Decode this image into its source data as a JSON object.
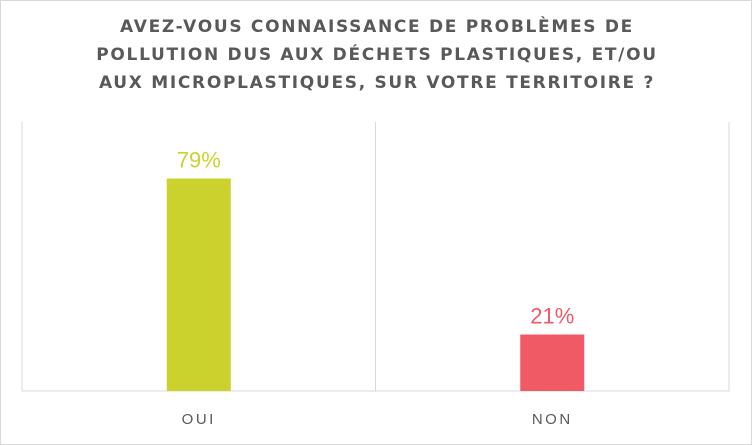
{
  "chart_data": {
    "type": "bar",
    "title_lines": [
      "AVEZ-VOUS CONNAISSANCE DE PROBLÈMES DE",
      "POLLUTION DUS AUX DÉCHETS PLASTIQUES, ET/OU",
      "AUX MICROPLASTIQUES, SUR VOTRE TERRITOIRE ?"
    ],
    "categories": [
      "OUI",
      "NON"
    ],
    "values": [
      79,
      21
    ],
    "data_labels": [
      "79%",
      "21%"
    ],
    "colors": [
      "#cbd22e",
      "#f05a65"
    ],
    "xlabel": "",
    "ylabel": "",
    "ylim": [
      0,
      100
    ],
    "grid": "vertical category separators",
    "legend": "none"
  }
}
